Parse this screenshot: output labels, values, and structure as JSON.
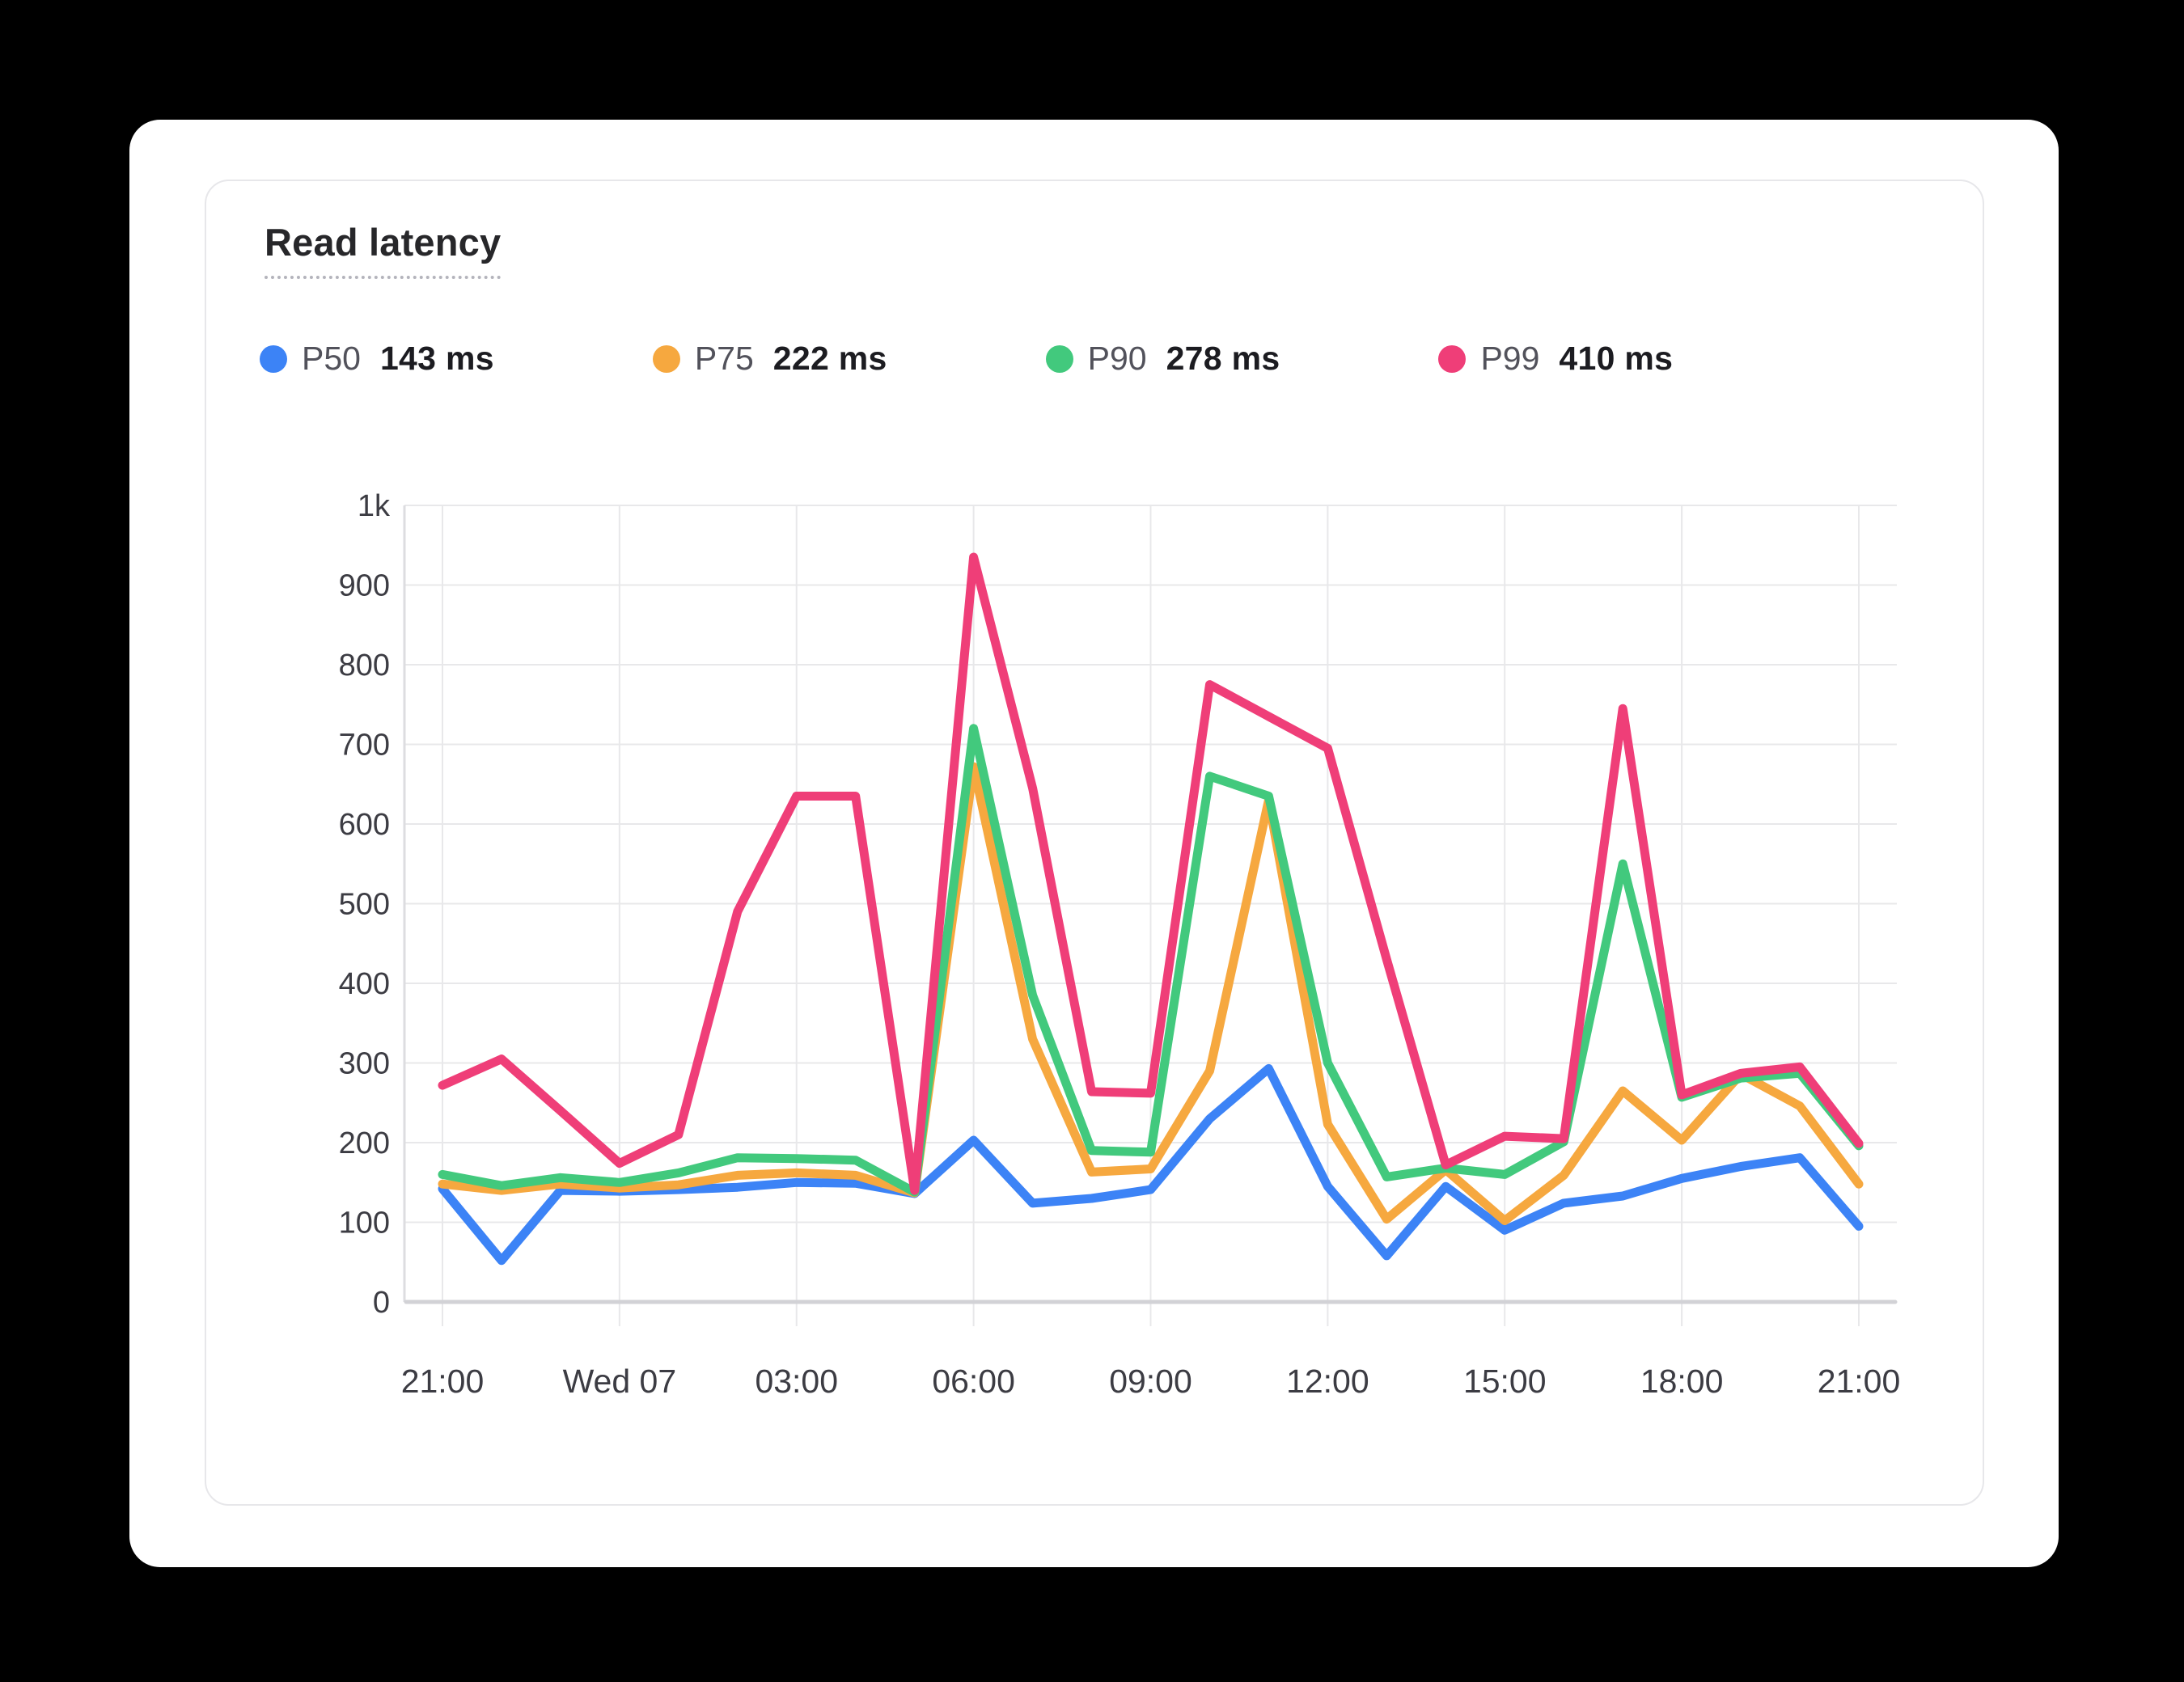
{
  "card": {
    "title": "Read latency"
  },
  "legend": [
    {
      "id": "p50",
      "label": "P50",
      "value": "143 ms",
      "color": "#3c83f6"
    },
    {
      "id": "p75",
      "label": "P75",
      "value": "222 ms",
      "color": "#f6a83f"
    },
    {
      "id": "p90",
      "label": "P90",
      "value": "278 ms",
      "color": "#42c97d"
    },
    {
      "id": "p99",
      "label": "P99",
      "value": "410 ms",
      "color": "#ef3e78"
    }
  ],
  "chart_data": {
    "type": "line",
    "title": "Read latency",
    "grid": true,
    "legend_position": "top",
    "x_axis": {
      "start_label": "21:00",
      "points_per_hour": 1,
      "total_hours": 24,
      "labels": [
        "21:00",
        "Wed 07",
        "03:00",
        "06:00",
        "09:00",
        "12:00",
        "15:00",
        "18:00",
        "21:00"
      ],
      "label_every_hours": 3
    },
    "y_axis": {
      "min": 0,
      "max": 1000,
      "tick_step": 100,
      "tick_labels": [
        "0",
        "100",
        "200",
        "300",
        "400",
        "500",
        "600",
        "700",
        "800",
        "900",
        "1k"
      ],
      "unit": "ms"
    },
    "series": [
      {
        "id": "p50",
        "name": "P50",
        "summary_value": "143 ms",
        "color": "#3c83f6",
        "values": [
          142,
          52,
          140,
          139,
          141,
          144,
          150,
          149,
          136,
          203,
          124,
          130,
          141,
          230,
          293,
          145,
          58,
          145,
          90,
          124,
          133,
          155,
          170,
          181,
          95
        ]
      },
      {
        "id": "p75",
        "name": "P75",
        "summary_value": "222 ms",
        "color": "#f6a83f",
        "values": [
          148,
          140,
          148,
          143,
          147,
          159,
          162,
          159,
          137,
          672,
          330,
          163,
          167,
          290,
          630,
          223,
          104,
          166,
          102,
          159,
          265,
          203,
          286,
          246,
          148
        ]
      },
      {
        "id": "p90",
        "name": "P90",
        "summary_value": "278 ms",
        "color": "#42c97d",
        "values": [
          160,
          146,
          156,
          150,
          162,
          181,
          180,
          178,
          138,
          720,
          385,
          190,
          188,
          660,
          635,
          300,
          157,
          168,
          160,
          201,
          550,
          257,
          281,
          287,
          196
        ]
      },
      {
        "id": "p99",
        "name": "P99",
        "summary_value": "410 ms",
        "color": "#ef3e78",
        "values": [
          272,
          305,
          240,
          174,
          210,
          490,
          635,
          635,
          140,
          935,
          645,
          264,
          262,
          775,
          735,
          695,
          430,
          172,
          208,
          205,
          745,
          260,
          287,
          295,
          199
        ]
      }
    ]
  }
}
